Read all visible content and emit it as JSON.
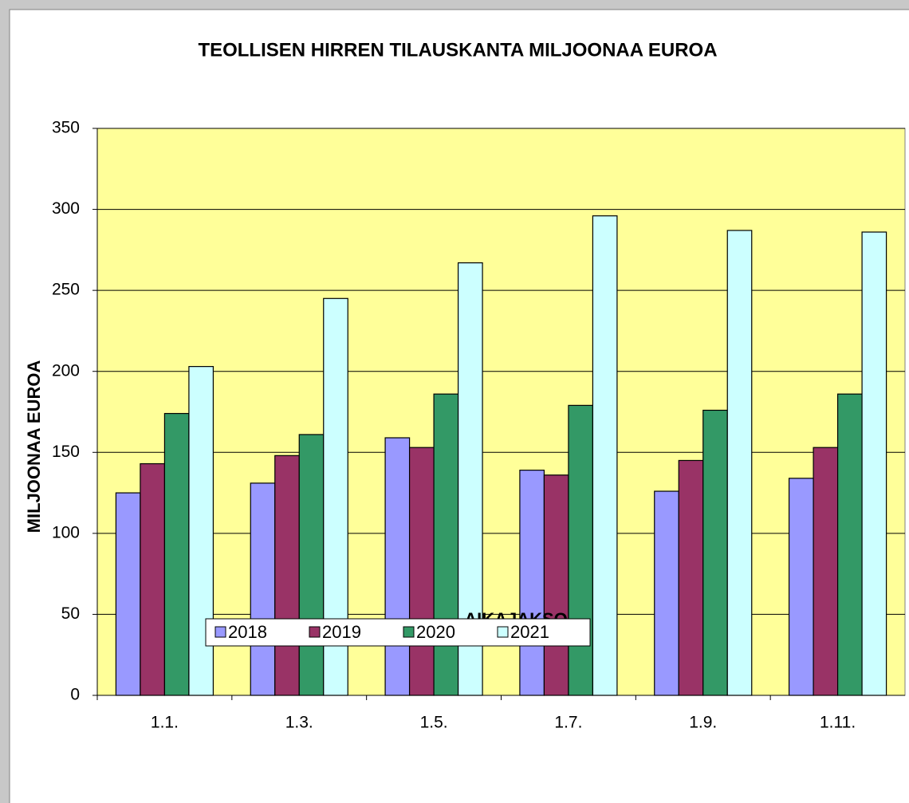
{
  "chart_data": {
    "type": "bar",
    "title": "TEOLLISEN HIRREN TILAUSKANTA MILJOONAA EUROA",
    "x_label": "AIKAJAKSO",
    "y_label": "MILJOONAA EUROA",
    "categories": [
      "1.1.",
      "1.3.",
      "1.5.",
      "1.7.",
      "1.9.",
      "1.11."
    ],
    "series": [
      {
        "name": "2018",
        "color": "#9999ff",
        "values": [
          125,
          131,
          159,
          139,
          126,
          134
        ]
      },
      {
        "name": "2019",
        "color": "#993366",
        "values": [
          143,
          148,
          153,
          136,
          145,
          153
        ]
      },
      {
        "name": "2020",
        "color": "#339966",
        "values": [
          174,
          161,
          186,
          179,
          176,
          186
        ]
      },
      {
        "name": "2021",
        "color": "#ccffff",
        "values": [
          203,
          245,
          267,
          296,
          287,
          286
        ]
      }
    ],
    "ylim": [
      0,
      350
    ],
    "yticks": [
      0,
      50,
      100,
      150,
      200,
      250,
      300,
      350
    ],
    "grid": true,
    "legend": "bottom",
    "plot_background": "#ffff99"
  }
}
